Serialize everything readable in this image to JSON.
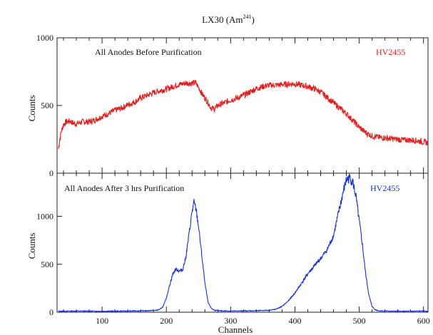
{
  "chart_data": [
    {
      "type": "line",
      "title": "LX30 (Am",
      "title_superscript": "241",
      "title_suffix": ")",
      "annotation": "All Anodes Before Purification",
      "tag": "HV2455",
      "color": "#e02020",
      "xlabel": "",
      "ylabel": "Counts",
      "xlim": [
        30,
        607
      ],
      "ylim": [
        0,
        1000
      ],
      "yticks": [
        0,
        500,
        1000
      ],
      "xticks": [
        100,
        200,
        300,
        400,
        500,
        600
      ],
      "grid": false,
      "series": [
        {
          "x": [
            32,
            36,
            40,
            45,
            50,
            55,
            60,
            70,
            80,
            90,
            100,
            110,
            120,
            130,
            140,
            150,
            160,
            170,
            180,
            190,
            200,
            210,
            220,
            230,
            240,
            245,
            250,
            255,
            260,
            265,
            270,
            275,
            280,
            290,
            300,
            310,
            320,
            330,
            340,
            350,
            360,
            370,
            380,
            390,
            400,
            410,
            420,
            430,
            440,
            450,
            460,
            470,
            480,
            490,
            500,
            510,
            520,
            530,
            540,
            550,
            560,
            570,
            580,
            590,
            600,
            607
          ],
          "y": [
            180,
            300,
            360,
            380,
            385,
            370,
            365,
            380,
            380,
            395,
            420,
            440,
            465,
            480,
            505,
            525,
            555,
            575,
            595,
            610,
            620,
            640,
            655,
            665,
            665,
            670,
            635,
            590,
            555,
            520,
            480,
            475,
            500,
            520,
            540,
            555,
            575,
            600,
            625,
            640,
            650,
            650,
            655,
            658,
            660,
            650,
            640,
            625,
            600,
            560,
            520,
            480,
            440,
            390,
            340,
            300,
            275,
            265,
            260,
            255,
            250,
            245,
            245,
            240,
            230,
            225
          ]
        }
      ]
    },
    {
      "type": "line",
      "title": "",
      "annotation": "All Anodes After 3 hrs Purification",
      "tag": "HV2455",
      "color": "#1a2fd8",
      "xlabel": "Channels",
      "ylabel": "Counts",
      "xlim": [
        30,
        607
      ],
      "ylim": [
        0,
        1450
      ],
      "yticks": [
        0,
        500,
        1000
      ],
      "xticks": [
        100,
        200,
        300,
        400,
        500,
        600
      ],
      "grid": false,
      "series": [
        {
          "x": [
            32,
            60,
            100,
            140,
            170,
            185,
            190,
            195,
            200,
            205,
            210,
            215,
            220,
            225,
            230,
            235,
            240,
            243,
            246,
            250,
            255,
            260,
            265,
            270,
            275,
            280,
            300,
            340,
            360,
            370,
            380,
            390,
            400,
            410,
            420,
            430,
            440,
            450,
            460,
            465,
            470,
            475,
            480,
            485,
            490,
            495,
            500,
            505,
            510,
            515,
            520,
            525,
            530,
            540,
            560,
            580,
            600,
            607
          ],
          "y": [
            10,
            12,
            10,
            12,
            15,
            20,
            30,
            60,
            150,
            280,
            400,
            450,
            430,
            440,
            560,
            800,
            1050,
            1140,
            1080,
            900,
            600,
            300,
            100,
            40,
            20,
            15,
            12,
            15,
            20,
            30,
            60,
            120,
            200,
            300,
            400,
            480,
            560,
            650,
            800,
            950,
            1100,
            1250,
            1380,
            1400,
            1360,
            1200,
            950,
            700,
            400,
            180,
            60,
            25,
            15,
            12,
            10,
            10,
            12,
            10
          ]
        }
      ]
    }
  ]
}
